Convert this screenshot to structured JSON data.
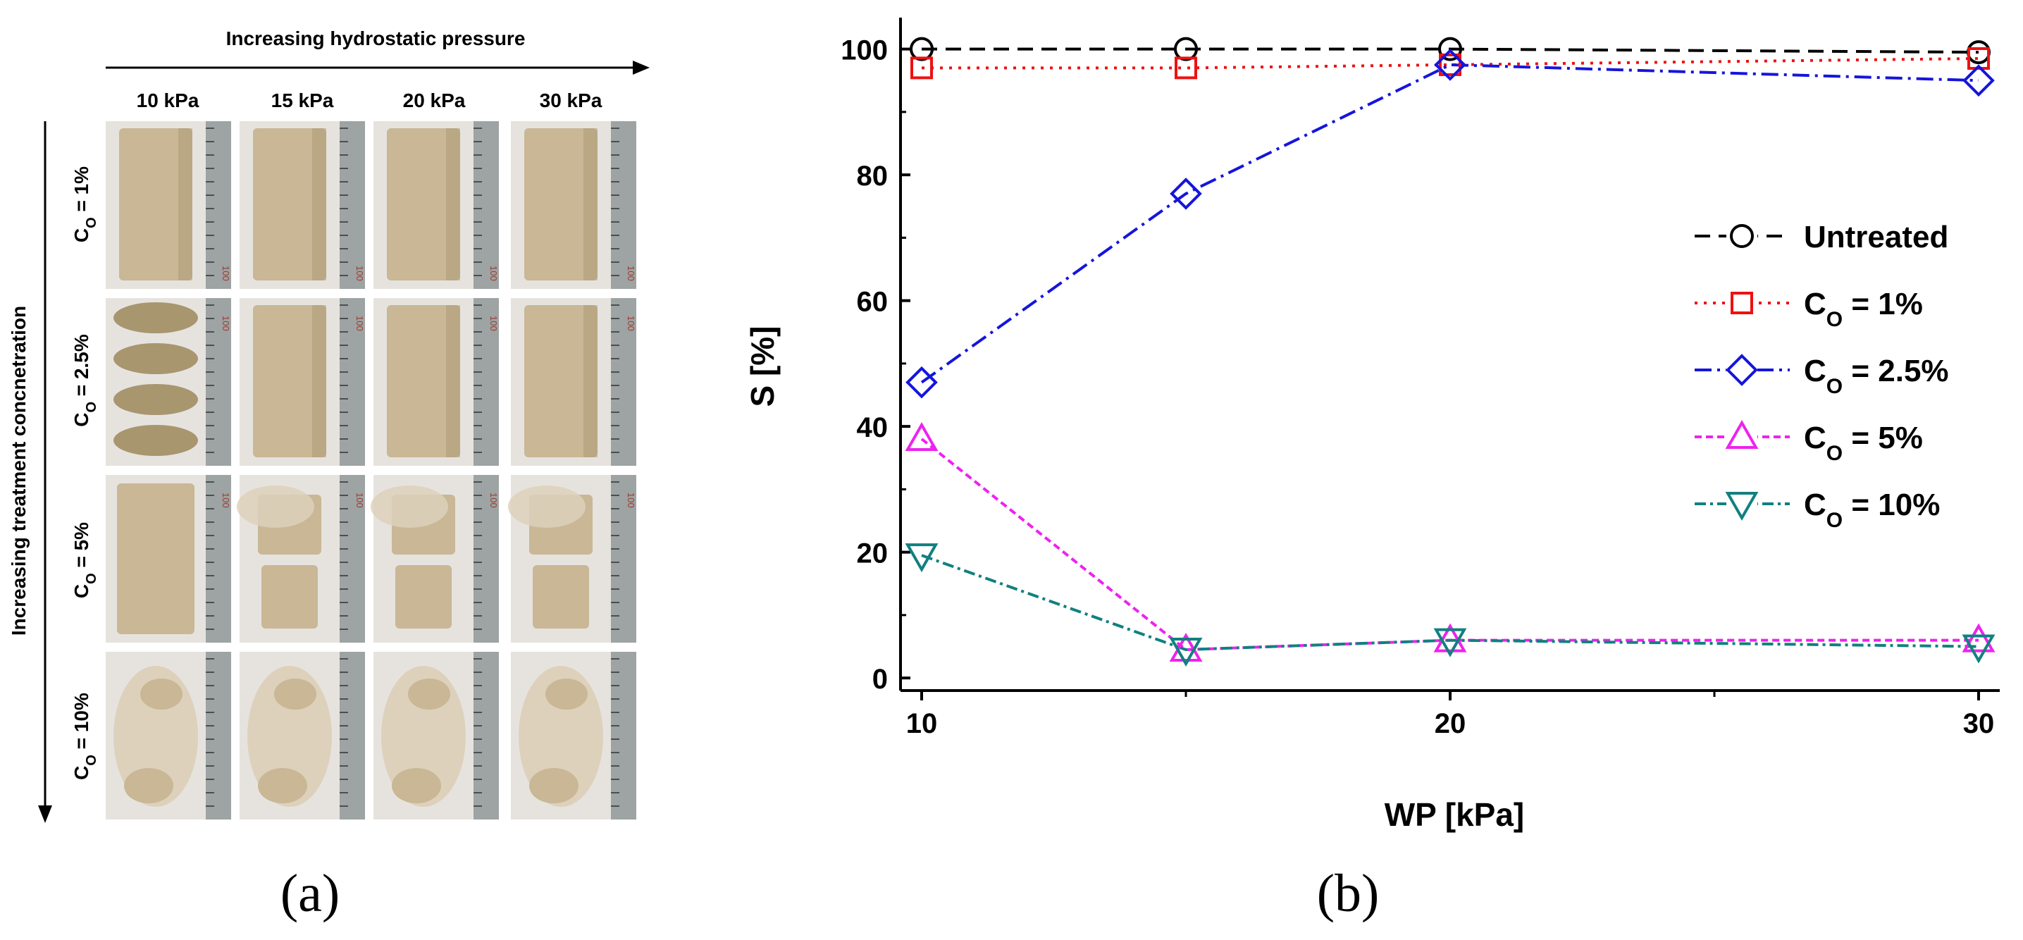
{
  "panel_a": {
    "top_arrow_label": "Increasing hydrostatic pressure",
    "side_arrow_label": "Increasing treatment concnetration",
    "column_labels": [
      "10 kPa",
      "15 kPa",
      "20 kPa",
      "30 kPa"
    ],
    "row_labels": [
      {
        "base": "C",
        "sub": "O",
        "rest": " = 1%"
      },
      {
        "base": "C",
        "sub": "O",
        "rest": " = 2.5%"
      },
      {
        "base": "C",
        "sub": "O",
        "rest": " = 5%"
      },
      {
        "base": "C",
        "sub": "O",
        "rest": " = 10%"
      }
    ],
    "ruler_mark": "100",
    "photo_colors": {
      "sample": "#c9b795",
      "sample_dark": "#a8966f",
      "debris": "#ddd1bb",
      "background": "#e6e3df",
      "ruler": "#9ea3a4"
    },
    "caption": "(a)"
  },
  "panel_b": {
    "caption": "(b)"
  },
  "chart_data": {
    "type": "line",
    "xlabel": "WP [kPa]",
    "ylabel": "S [%]",
    "xlim": [
      9.6,
      30.4
    ],
    "ylim": [
      -2,
      105
    ],
    "x_ticks": [
      10,
      20,
      30
    ],
    "x_tick_labels": [
      "10",
      "20",
      "30"
    ],
    "x_minor_ticks": [
      15,
      25
    ],
    "y_ticks": [
      0,
      20,
      40,
      60,
      80,
      100
    ],
    "y_tick_labels": [
      "0",
      "20",
      "40",
      "60",
      "80",
      "100"
    ],
    "grid": false,
    "legend_position": "right",
    "x": [
      10,
      15,
      20,
      30
    ],
    "series": [
      {
        "name": "Untreated",
        "label_base": "Untreated",
        "label_sub": "",
        "label_rest": "",
        "values": [
          100,
          100,
          100,
          99.5
        ],
        "color": "#000000",
        "marker": "circle",
        "dash": "22,12"
      },
      {
        "name": "CO = 1%",
        "label_base": "C",
        "label_sub": "O",
        "label_rest": " = 1%",
        "values": [
          97,
          97,
          97.5,
          98.5
        ],
        "color": "#ee1111",
        "marker": "square",
        "dash": "4,9"
      },
      {
        "name": "CO = 2.5%",
        "label_base": "C",
        "label_sub": "O",
        "label_rest": " = 2.5%",
        "values": [
          47,
          77,
          97.5,
          95
        ],
        "color": "#1515dd",
        "marker": "diamond",
        "dash": "24,8,4,8"
      },
      {
        "name": "CO = 5%",
        "label_base": "C",
        "label_sub": "O",
        "label_rest": " = 5%",
        "values": [
          38,
          4.5,
          6,
          6
        ],
        "color": "#ee22ee",
        "marker": "triangle-up",
        "dash": "10,6"
      },
      {
        "name": "CO = 10%",
        "label_base": "C",
        "label_sub": "O",
        "label_rest": " = 10%",
        "values": [
          19.5,
          4.5,
          6,
          5
        ],
        "color": "#118080",
        "marker": "triangle-down",
        "dash": "16,6,4,6"
      }
    ]
  }
}
